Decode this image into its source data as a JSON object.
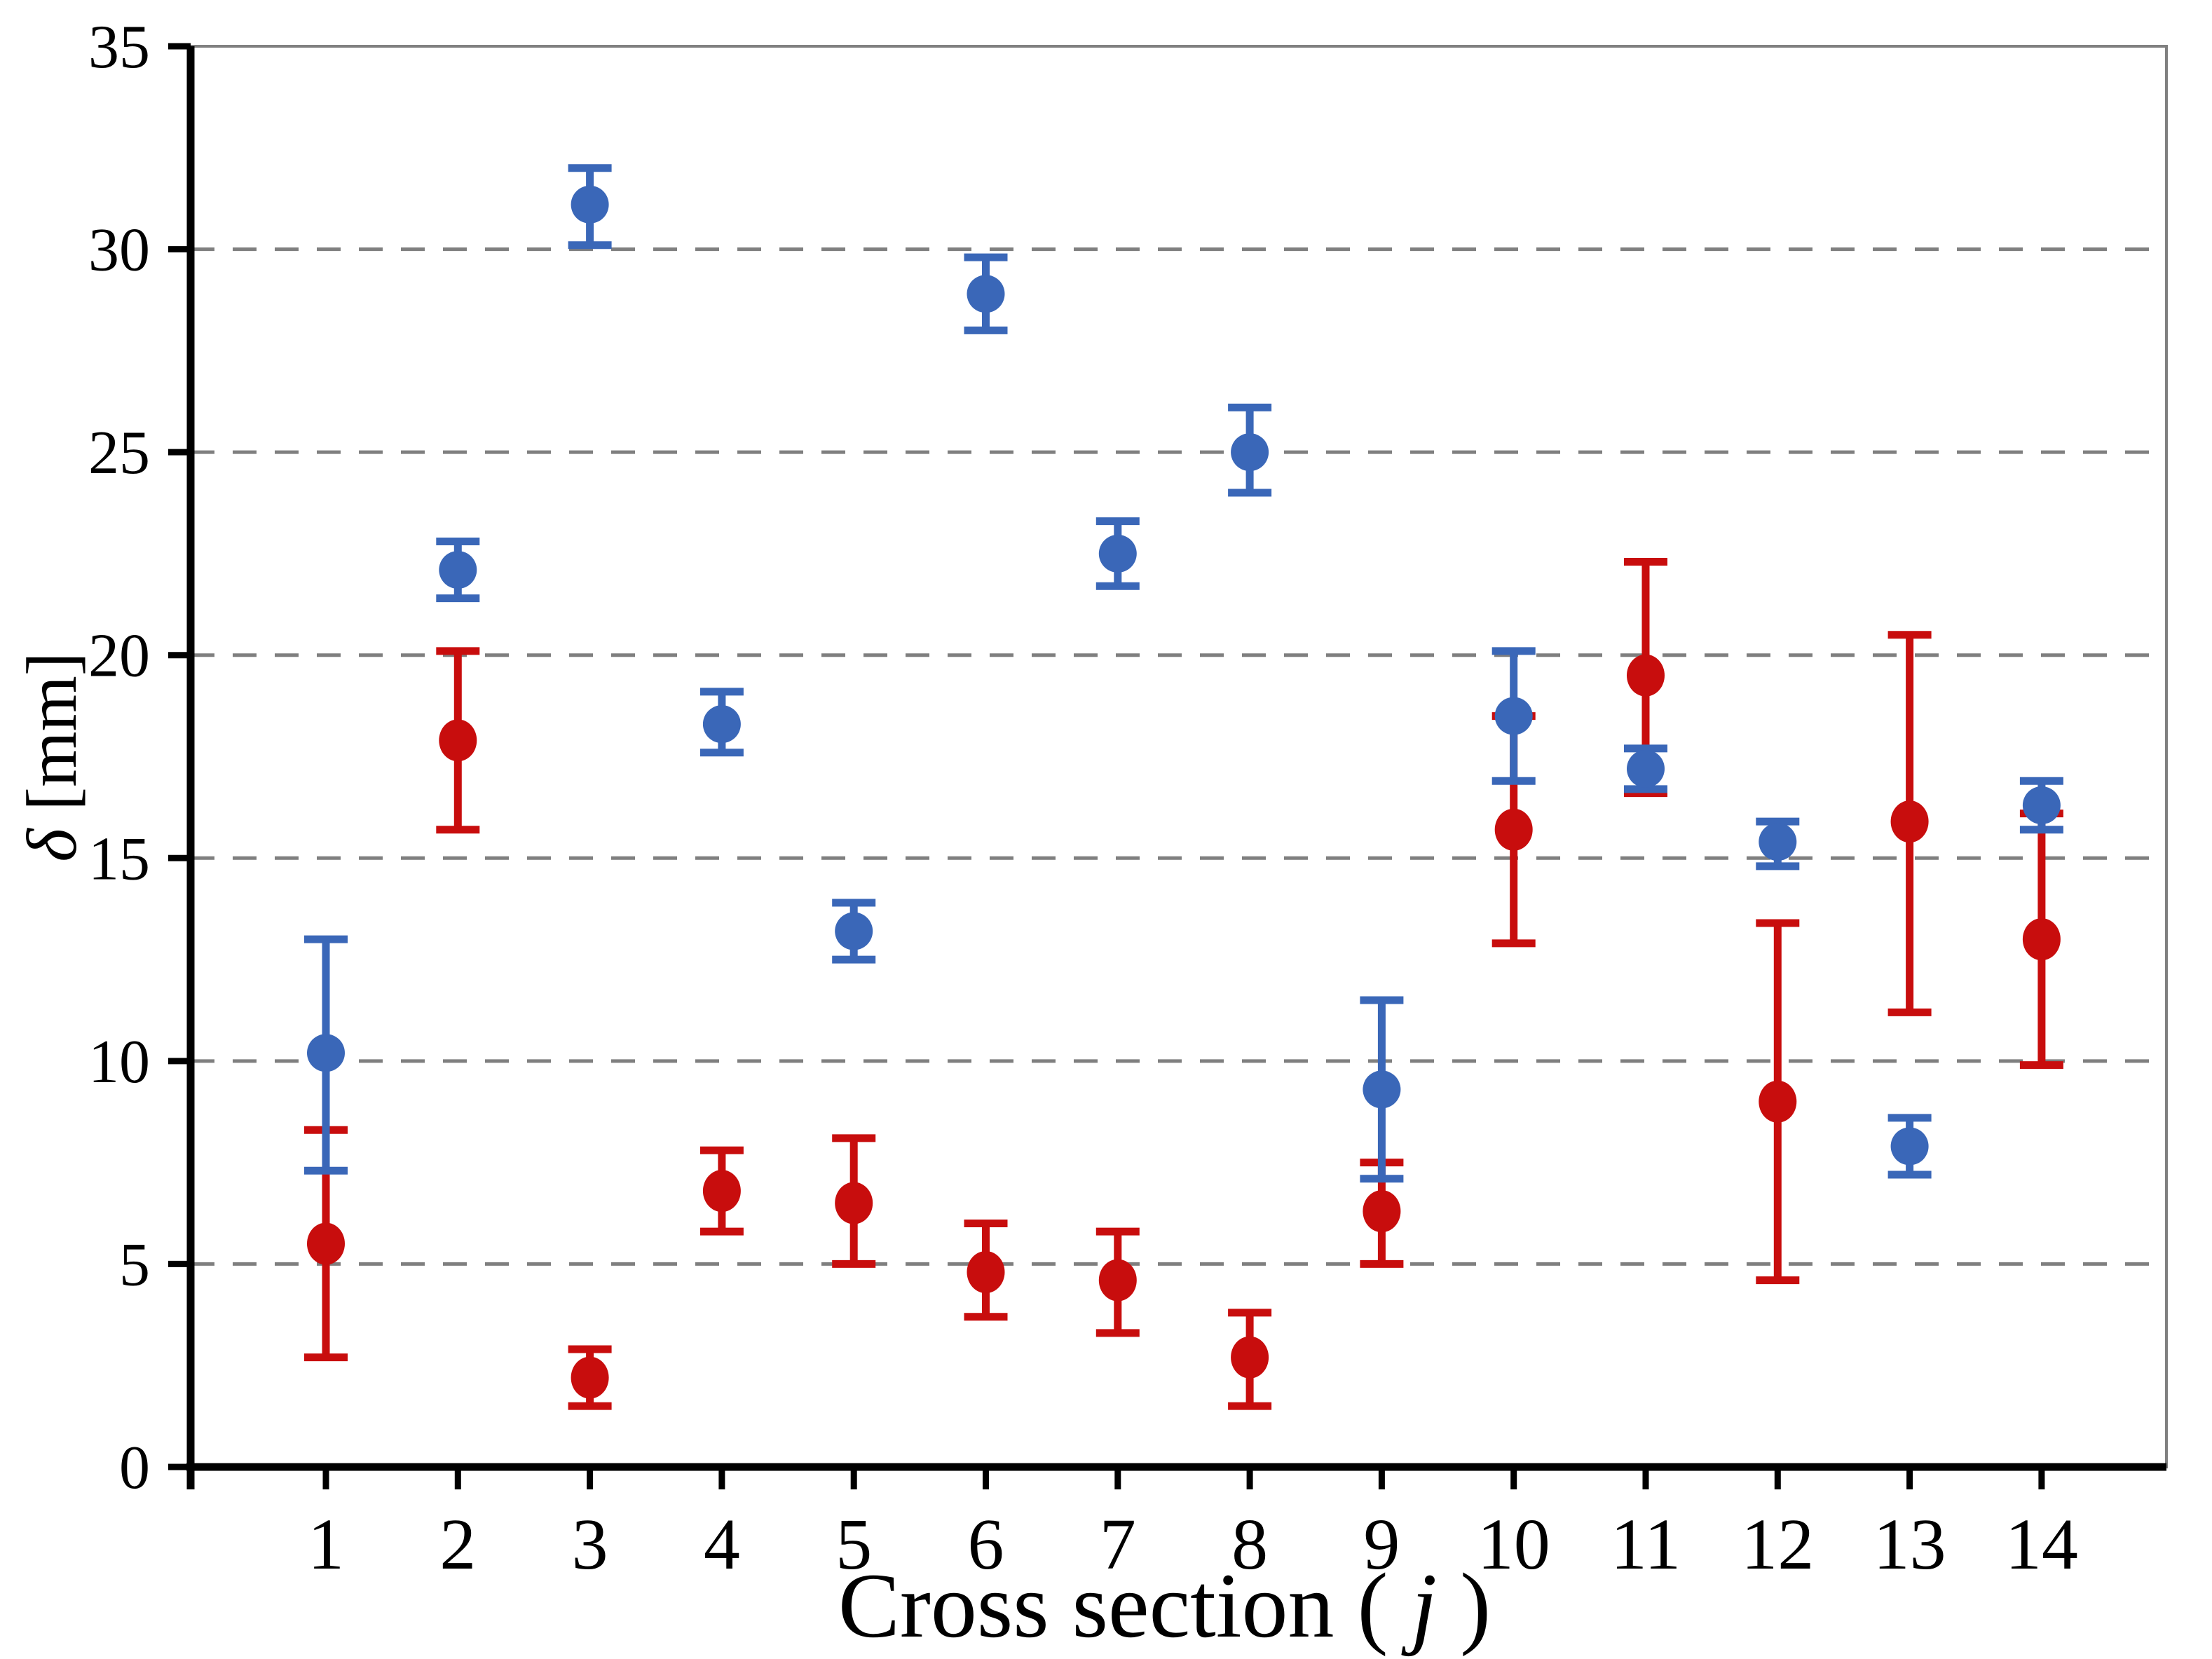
{
  "figure": {
    "background": "#ffffff",
    "description": "Scatter chart with vertical error bars, two unlabeled series (blue and red), no legend"
  },
  "chart_data": {
    "type": "scatter",
    "title": "",
    "xlabel_prefix": "Cross section ( ",
    "xlabel_italic": "j",
    "xlabel_suffix": " )",
    "ylabel_italic": "δ",
    "ylabel_suffix": " [mm]",
    "categories": [
      1,
      2,
      3,
      4,
      5,
      6,
      7,
      8,
      9,
      10,
      11,
      12,
      13,
      14
    ],
    "x_tick_labels": [
      "1",
      "2",
      "3",
      "4",
      "5",
      "6",
      "7",
      "8",
      "9",
      "10",
      "11",
      "12",
      "13",
      "14"
    ],
    "y_tick_labels": [
      "0",
      "5",
      "10",
      "15",
      "20",
      "25",
      "30",
      "35"
    ],
    "yticks": [
      0,
      5,
      10,
      15,
      20,
      25,
      30,
      35
    ],
    "gridlines": [
      5,
      10,
      15,
      20,
      25,
      30
    ],
    "ylim": [
      0,
      35
    ],
    "grid": "horizontal dashed gray lines, legend none, plot border thin gray on top and right, thick black left and bottom axes",
    "legend_position": "none",
    "colors": {
      "blue_series": "#3A67B8",
      "red_series": "#C80D0D",
      "gridline": "#7F7F7F",
      "plot_border": "#808080",
      "axis": "#000000"
    },
    "series": [
      {
        "name": "red",
        "color": "#C80D0D",
        "marker": "circle",
        "values": [
          5.5,
          17.9,
          2.2,
          6.8,
          6.5,
          4.8,
          4.6,
          2.7,
          6.3,
          15.7,
          19.5,
          9.0,
          15.9,
          13.0
        ],
        "err_lo_abs": [
          2.7,
          15.7,
          1.5,
          5.8,
          5.0,
          3.7,
          3.3,
          1.5,
          5.0,
          12.9,
          16.6,
          4.6,
          11.2,
          9.9
        ],
        "err_hi_abs": [
          8.3,
          20.1,
          2.9,
          7.8,
          8.1,
          6.0,
          5.8,
          3.8,
          7.5,
          18.5,
          22.3,
          13.4,
          20.5,
          16.1
        ]
      },
      {
        "name": "blue",
        "color": "#3A67B8",
        "marker": "circle",
        "values": [
          10.2,
          22.1,
          31.1,
          18.3,
          13.2,
          28.9,
          22.5,
          25.0,
          9.3,
          18.5,
          17.2,
          15.4,
          7.9,
          16.3
        ],
        "err_lo_abs": [
          7.3,
          21.4,
          30.1,
          17.6,
          12.5,
          28.0,
          21.7,
          24.0,
          7.1,
          16.9,
          16.7,
          14.8,
          7.2,
          15.7
        ],
        "err_hi_abs": [
          13.0,
          22.8,
          32.0,
          19.1,
          13.9,
          29.8,
          23.3,
          26.1,
          11.5,
          20.1,
          17.7,
          15.9,
          8.6,
          16.9
        ]
      }
    ]
  }
}
